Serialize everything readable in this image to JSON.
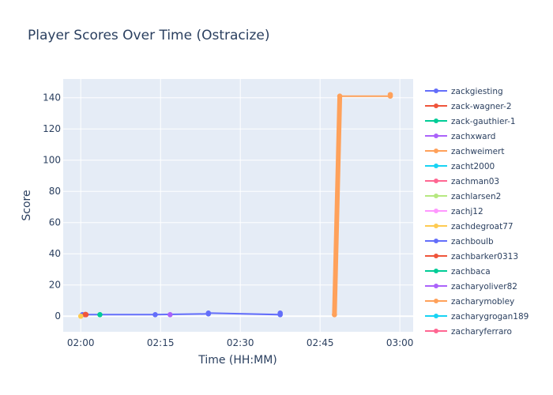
{
  "chart_data": {
    "type": "line",
    "title": "Player Scores Over Time (Ostracize)",
    "xlabel": "Time (HH:MM)",
    "ylabel": "Score",
    "x_ticks": [
      "02:00",
      "02:15",
      "02:30",
      "02:45",
      "03:00"
    ],
    "x_tick_minutes": [
      0,
      15,
      30,
      45,
      60
    ],
    "xlim_minutes": [
      -3.3,
      62.5
    ],
    "ylim": [
      -10,
      152
    ],
    "y_ticks": [
      0,
      20,
      40,
      60,
      80,
      100,
      120,
      140
    ],
    "grid": true,
    "legend_position": "right",
    "series": [
      {
        "name": "zackgiesting",
        "color": "#636efa",
        "points": [
          [
            0.3,
            1
          ],
          [
            14,
            1
          ],
          [
            24,
            1.5
          ],
          [
            24,
            2
          ],
          [
            37.5,
            1
          ],
          [
            37.5,
            2
          ]
        ]
      },
      {
        "name": "zack-wagner-2",
        "color": "#EF553B",
        "points": [
          [
            0.8,
            1
          ],
          [
            1,
            1
          ]
        ]
      },
      {
        "name": "zack-gauthier-1",
        "color": "#00cc96",
        "points": [
          [
            3.6,
            1
          ]
        ]
      },
      {
        "name": "zachxward",
        "color": "#ab63fa",
        "points": [
          [
            16.8,
            1
          ]
        ]
      },
      {
        "name": "zachweimert",
        "color": "#FFA15A",
        "points": [
          [
            47.7,
            1
          ],
          [
            48.7,
            141
          ],
          [
            58.2,
            141
          ],
          [
            58.2,
            142
          ]
        ]
      },
      {
        "name": "zacht2000",
        "color": "#19d3f3",
        "points": []
      },
      {
        "name": "zachman03",
        "color": "#FF6692",
        "points": []
      },
      {
        "name": "zachlarsen2",
        "color": "#B6E880",
        "points": []
      },
      {
        "name": "zachj12",
        "color": "#FF97FF",
        "points": []
      },
      {
        "name": "zachdegroat77",
        "color": "#FECB52",
        "points": [
          [
            0,
            0
          ]
        ]
      },
      {
        "name": "zachboulb",
        "color": "#636efa",
        "points": []
      },
      {
        "name": "zachbarker0313",
        "color": "#EF553B",
        "points": [
          [
            0.9,
            1.2
          ]
        ]
      },
      {
        "name": "zachbaca",
        "color": "#00cc96",
        "points": []
      },
      {
        "name": "zacharyoliver82",
        "color": "#ab63fa",
        "points": []
      },
      {
        "name": "zacharymobley",
        "color": "#FFA15A",
        "points": []
      },
      {
        "name": "zacharygrogan189",
        "color": "#19d3f3",
        "points": []
      },
      {
        "name": "zacharyferraro",
        "color": "#FF6692",
        "points": []
      }
    ]
  }
}
